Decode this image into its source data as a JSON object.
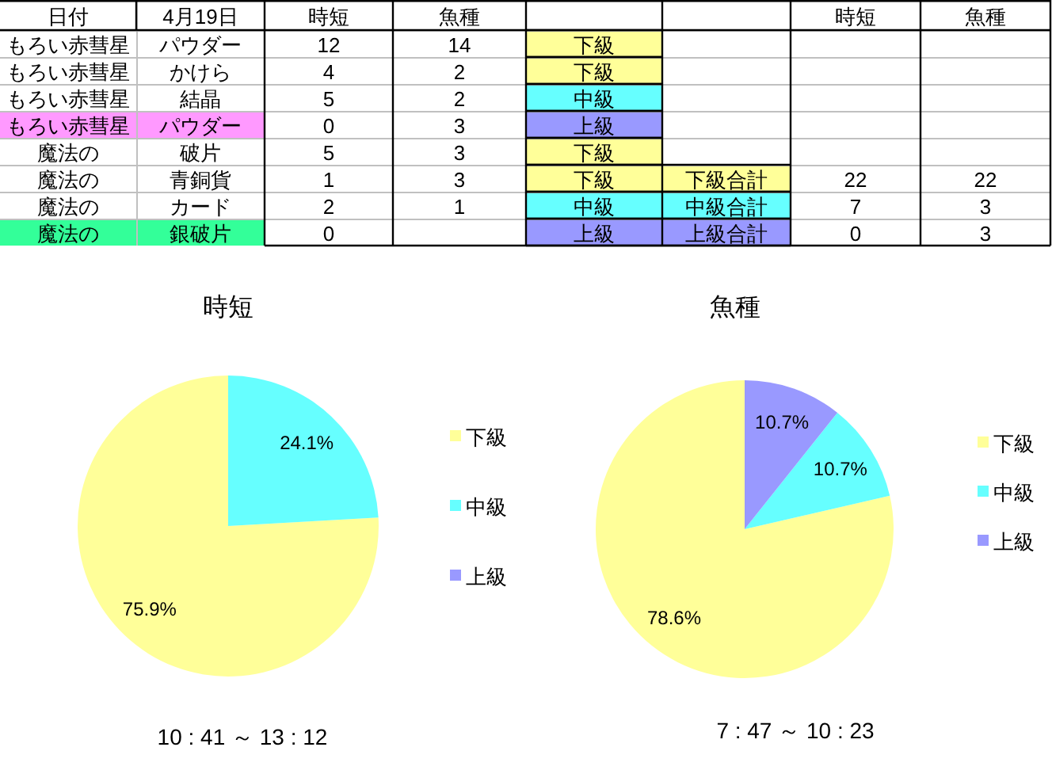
{
  "chart_data": [
    {
      "type": "other",
      "cell_labels": [
        [
          "日付",
          "4月19日",
          "時短",
          "魚種",
          null,
          null,
          "時短",
          "魚種"
        ],
        [
          "もろい赤彗星",
          "パウダー",
          "12",
          "14",
          "下級",
          null,
          null,
          null
        ],
        [
          "もろい赤彗星",
          "かけら",
          "4",
          "2",
          "下級",
          null,
          null,
          null
        ],
        [
          "もろい赤彗星",
          "結晶",
          "5",
          "2",
          "中級",
          null,
          null,
          null
        ],
        [
          "もろい赤彗星",
          "パウダー",
          "0",
          "3",
          "上級",
          null,
          null,
          null
        ],
        [
          "魔法の",
          "破片",
          "5",
          "3",
          "下級",
          null,
          null,
          null
        ],
        [
          "魔法の",
          "青銅貨",
          "1",
          "3",
          "下級",
          "下級合計",
          "22",
          "22"
        ],
        [
          "魔法の",
          "カード",
          "2",
          "1",
          "中級",
          "中級合計",
          "7",
          "3"
        ],
        [
          "魔法の",
          "銀破片",
          "0",
          null,
          "上級",
          "上級合計",
          "0",
          "3"
        ]
      ],
      "colors": [
        [
          null,
          null,
          null,
          null,
          null,
          null,
          null,
          null
        ],
        [
          null,
          null,
          null,
          null,
          "#ffff99",
          null,
          null,
          null
        ],
        [
          null,
          null,
          null,
          null,
          "#ffff99",
          null,
          null,
          null
        ],
        [
          null,
          null,
          null,
          null,
          "#66ffff",
          null,
          null,
          null
        ],
        [
          "#ff99ff",
          "#ff99ff",
          null,
          null,
          "#9999ff",
          null,
          null,
          null
        ],
        [
          null,
          null,
          null,
          null,
          "#ffff99",
          null,
          null,
          null
        ],
        [
          null,
          null,
          null,
          null,
          "#ffff99",
          "#ffff99",
          null,
          null
        ],
        [
          null,
          null,
          null,
          null,
          "#66ffff",
          "#66ffff",
          null,
          null
        ],
        [
          "#33ff99",
          "#33ff99",
          null,
          null,
          "#9999ff",
          "#9999ff",
          null,
          null
        ]
      ]
    },
    {
      "type": "pie",
      "title": "時短",
      "categories": [
        "下級",
        "中級",
        "上級"
      ],
      "values": [
        75.9,
        24.1,
        0
      ],
      "colors": [
        "#ffff99",
        "#66ffff",
        "#9999ff"
      ],
      "value_labels": [
        "75.9%",
        "24.1%",
        null
      ],
      "legend": "right",
      "annotations": [
        "10 : 41 ～ 13 : 12"
      ]
    },
    {
      "type": "pie",
      "title": "魚種",
      "categories": [
        "下級",
        "中級",
        "上級"
      ],
      "values": [
        78.6,
        10.7,
        10.7
      ],
      "colors": [
        "#ffff99",
        "#66ffff",
        "#9999ff"
      ],
      "value_labels": [
        "78.6%",
        "10.7%",
        "10.7%"
      ],
      "legend": "right",
      "annotations": [
        "7 : 47 ～ 10 : 23"
      ]
    }
  ]
}
